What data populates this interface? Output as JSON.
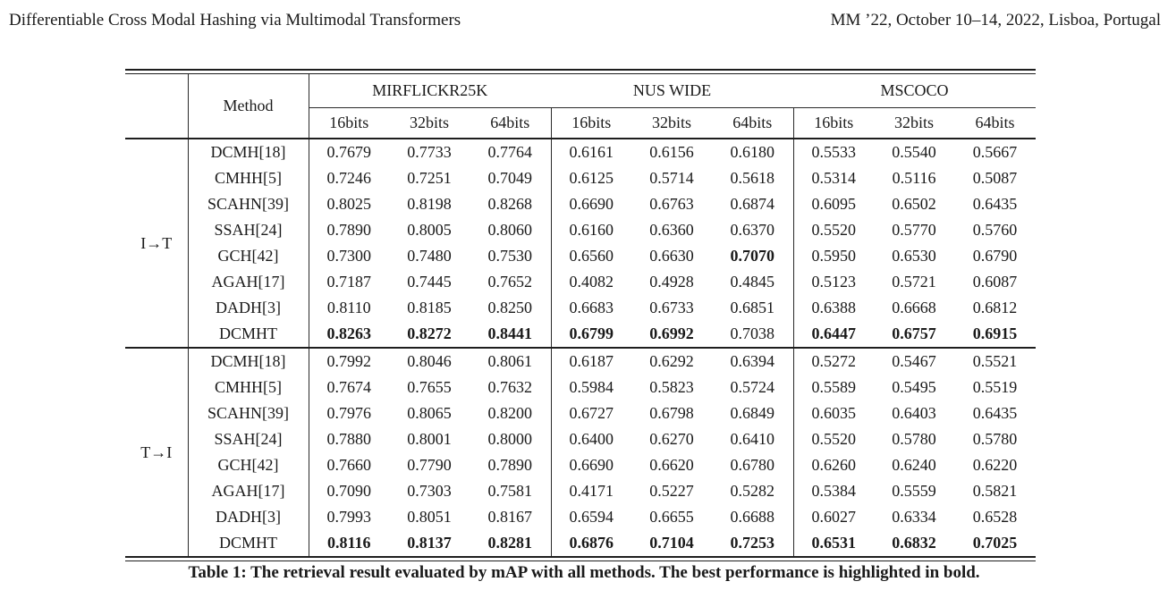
{
  "page_header": {
    "left_title": "Differentiable Cross Modal Hashing via Multimodal Transformers",
    "right_venue": "MM ’22, October 10–14, 2022, Lisboa, Portugal"
  },
  "table": {
    "method_header": "Method",
    "groups": [
      {
        "label": "MIRFLICKR25K",
        "bits": [
          "16bits",
          "32bits",
          "64bits"
        ]
      },
      {
        "label": "NUS WIDE",
        "bits": [
          "16bits",
          "32bits",
          "64bits"
        ]
      },
      {
        "label": "MSCOCO",
        "bits": [
          "16bits",
          "32bits",
          "64bits"
        ]
      }
    ],
    "sections": [
      {
        "label": "I→T",
        "rows": [
          {
            "method": "DCMH[18]",
            "values": [
              "0.7679",
              "0.7733",
              "0.7764",
              "0.6161",
              "0.6156",
              "0.6180",
              "0.5533",
              "0.5540",
              "0.5667"
            ],
            "bold": []
          },
          {
            "method": "CMHH[5]",
            "values": [
              "0.7246",
              "0.7251",
              "0.7049",
              "0.6125",
              "0.5714",
              "0.5618",
              "0.5314",
              "0.5116",
              "0.5087"
            ],
            "bold": []
          },
          {
            "method": "SCAHN[39]",
            "values": [
              "0.8025",
              "0.8198",
              "0.8268",
              "0.6690",
              "0.6763",
              "0.6874",
              "0.6095",
              "0.6502",
              "0.6435"
            ],
            "bold": []
          },
          {
            "method": "SSAH[24]",
            "values": [
              "0.7890",
              "0.8005",
              "0.8060",
              "0.6160",
              "0.6360",
              "0.6370",
              "0.5520",
              "0.5770",
              "0.5760"
            ],
            "bold": []
          },
          {
            "method": "GCH[42]",
            "values": [
              "0.7300",
              "0.7480",
              "0.7530",
              "0.6560",
              "0.6630",
              "0.7070",
              "0.5950",
              "0.6530",
              "0.6790"
            ],
            "bold": [
              5
            ]
          },
          {
            "method": "AGAH[17]",
            "values": [
              "0.7187",
              "0.7445",
              "0.7652",
              "0.4082",
              "0.4928",
              "0.4845",
              "0.5123",
              "0.5721",
              "0.6087"
            ],
            "bold": []
          },
          {
            "method": "DADH[3]",
            "values": [
              "0.8110",
              "0.8185",
              "0.8250",
              "0.6683",
              "0.6733",
              "0.6851",
              "0.6388",
              "0.6668",
              "0.6812"
            ],
            "bold": []
          },
          {
            "method": "DCMHT",
            "values": [
              "0.8263",
              "0.8272",
              "0.8441",
              "0.6799",
              "0.6992",
              "0.7038",
              "0.6447",
              "0.6757",
              "0.6915"
            ],
            "bold": [
              0,
              1,
              2,
              3,
              4,
              6,
              7,
              8
            ]
          }
        ]
      },
      {
        "label": "T→I",
        "rows": [
          {
            "method": "DCMH[18]",
            "values": [
              "0.7992",
              "0.8046",
              "0.8061",
              "0.6187",
              "0.6292",
              "0.6394",
              "0.5272",
              "0.5467",
              "0.5521"
            ],
            "bold": []
          },
          {
            "method": "CMHH[5]",
            "values": [
              "0.7674",
              "0.7655",
              "0.7632",
              "0.5984",
              "0.5823",
              "0.5724",
              "0.5589",
              "0.5495",
              "0.5519"
            ],
            "bold": []
          },
          {
            "method": "SCAHN[39]",
            "values": [
              "0.7976",
              "0.8065",
              "0.8200",
              "0.6727",
              "0.6798",
              "0.6849",
              "0.6035",
              "0.6403",
              "0.6435"
            ],
            "bold": []
          },
          {
            "method": "SSAH[24]",
            "values": [
              "0.7880",
              "0.8001",
              "0.8000",
              "0.6400",
              "0.6270",
              "0.6410",
              "0.5520",
              "0.5780",
              "0.5780"
            ],
            "bold": []
          },
          {
            "method": "GCH[42]",
            "values": [
              "0.7660",
              "0.7790",
              "0.7890",
              "0.6690",
              "0.6620",
              "0.6780",
              "0.6260",
              "0.6240",
              "0.6220"
            ],
            "bold": []
          },
          {
            "method": "AGAH[17]",
            "values": [
              "0.7090",
              "0.7303",
              "0.7581",
              "0.4171",
              "0.5227",
              "0.5282",
              "0.5384",
              "0.5559",
              "0.5821"
            ],
            "bold": []
          },
          {
            "method": "DADH[3]",
            "values": [
              "0.7993",
              "0.8051",
              "0.8167",
              "0.6594",
              "0.6655",
              "0.6688",
              "0.6027",
              "0.6334",
              "0.6528"
            ],
            "bold": []
          },
          {
            "method": "DCMHT",
            "values": [
              "0.8116",
              "0.8137",
              "0.8281",
              "0.6876",
              "0.7104",
              "0.7253",
              "0.6531",
              "0.6832",
              "0.7025"
            ],
            "bold": [
              0,
              1,
              2,
              3,
              4,
              5,
              6,
              7,
              8
            ]
          }
        ]
      }
    ],
    "caption": "Table 1: The retrieval result evaluated by mAP with all methods. The best performance is highlighted in bold."
  }
}
